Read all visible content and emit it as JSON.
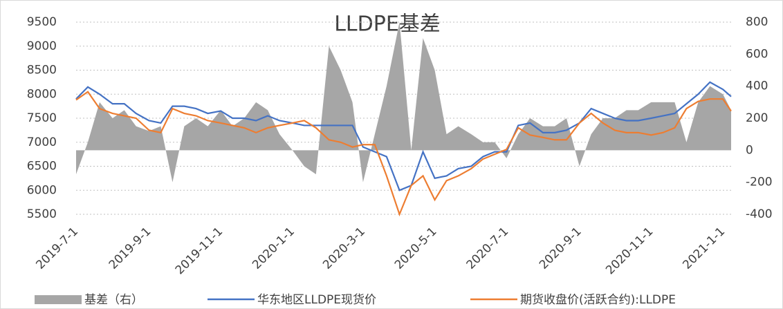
{
  "chart_data": {
    "type": "line",
    "title": "LLDPE基差",
    "x": [
      "2019-7-1",
      "2019-7-11",
      "2019-7-21",
      "2019-8-1",
      "2019-8-11",
      "2019-8-21",
      "2019-9-1",
      "2019-9-11",
      "2019-9-21",
      "2019-10-1",
      "2019-10-11",
      "2019-10-21",
      "2019-11-1",
      "2019-11-11",
      "2019-11-21",
      "2019-12-1",
      "2019-12-11",
      "2019-12-21",
      "2020-1-1",
      "2020-1-11",
      "2020-1-21",
      "2020-2-1",
      "2020-2-11",
      "2020-2-21",
      "2020-3-1",
      "2020-3-11",
      "2020-3-21",
      "2020-4-1",
      "2020-4-11",
      "2020-4-21",
      "2020-5-1",
      "2020-5-11",
      "2020-5-21",
      "2020-6-1",
      "2020-6-11",
      "2020-6-21",
      "2020-7-1",
      "2020-7-11",
      "2020-7-21",
      "2020-8-1",
      "2020-8-11",
      "2020-8-21",
      "2020-9-1",
      "2020-9-11",
      "2020-9-21",
      "2020-10-1",
      "2020-10-11",
      "2020-10-21",
      "2020-11-1",
      "2020-11-11",
      "2020-11-21",
      "2020-12-1",
      "2020-12-11",
      "2020-12-21",
      "2021-1-1",
      "2021-1-8"
    ],
    "series": [
      {
        "name": "基差（右）",
        "color": "#a6a6a6",
        "axis": "y2",
        "style": "area",
        "values": [
          -150,
          50,
          300,
          200,
          250,
          150,
          120,
          150,
          -200,
          150,
          200,
          150,
          250,
          150,
          200,
          300,
          250,
          100,
          0,
          -100,
          -150,
          650,
          500,
          300,
          -200,
          100,
          400,
          800,
          0,
          700,
          500,
          100,
          150,
          100,
          50,
          50,
          -50,
          100,
          200,
          150,
          150,
          200,
          -100,
          100,
          200,
          200,
          250,
          250,
          300,
          300,
          300,
          50,
          300,
          400,
          350,
          250
        ]
      },
      {
        "name": "华东地区LLDPE现货价",
        "color": "#4472c4",
        "values": [
          7900,
          8150,
          8000,
          7800,
          7800,
          7600,
          7450,
          7400,
          7750,
          7750,
          7700,
          7600,
          7650,
          7500,
          7500,
          7450,
          7550,
          7450,
          7400,
          7350,
          7350,
          7350,
          7350,
          7350,
          6900,
          6800,
          6700,
          6000,
          6100,
          6800,
          6250,
          6300,
          6450,
          6500,
          6700,
          6800,
          6800,
          7350,
          7400,
          7200,
          7200,
          7250,
          7400,
          7700,
          7600,
          7500,
          7450,
          7450,
          7500,
          7550,
          7600,
          7800,
          8000,
          8250,
          8100,
          7950
        ]
      },
      {
        "name": "期货收盘价(活跃合约):LLDPE",
        "color": "#ed7d31",
        "values": [
          7880,
          8050,
          7700,
          7600,
          7550,
          7500,
          7250,
          7200,
          7700,
          7600,
          7550,
          7450,
          7400,
          7350,
          7300,
          7200,
          7300,
          7350,
          7400,
          7450,
          7300,
          7050,
          7000,
          6900,
          6950,
          6950,
          6300,
          5500,
          6100,
          6300,
          5800,
          6200,
          6300,
          6450,
          6650,
          6750,
          6850,
          7300,
          7150,
          7100,
          7050,
          7050,
          7400,
          7600,
          7400,
          7250,
          7200,
          7200,
          7150,
          7200,
          7300,
          7700,
          7850,
          7900,
          7900,
          7650
        ]
      }
    ],
    "ylim": [
      5500,
      9500
    ],
    "yticks": [
      5500,
      6000,
      6500,
      7000,
      7500,
      8000,
      8500,
      9000,
      9500
    ],
    "y2lim": [
      -400,
      800
    ],
    "y2ticks": [
      -400,
      -200,
      0,
      200,
      400,
      600,
      800
    ],
    "xticks": [
      "2019-7-1",
      "2019-9-1",
      "2019-11-1",
      "2020-1-1",
      "2020-3-1",
      "2020-5-1",
      "2020-7-1",
      "2020-9-1",
      "2020-11-1",
      "2021-1-1"
    ],
    "grid": true,
    "legend": "bottom"
  }
}
